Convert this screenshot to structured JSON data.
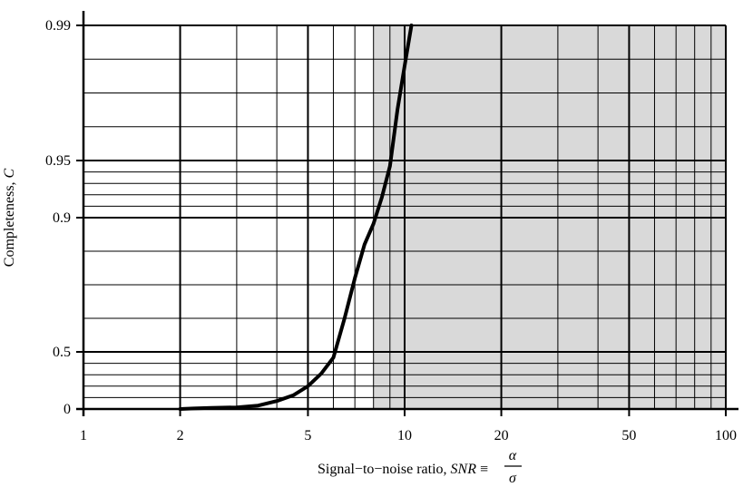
{
  "chart_data": {
    "type": "line",
    "title": "",
    "xlabel": {
      "prefix": "Signal−to−noise ratio, ",
      "symbol": "SNR",
      "equiv": " ≡ ",
      "numerator": "α",
      "denominator": "σ"
    },
    "ylabel": {
      "prefix": "Completeness, ",
      "symbol": "C"
    },
    "x_scale": "log",
    "xlim": [
      1,
      100
    ],
    "y_scale": "probability (nonlinear)",
    "ylim": [
      0,
      0.99
    ],
    "x_ticks": [
      1,
      2,
      5,
      10,
      20,
      50,
      100
    ],
    "x_tick_labels": [
      "1",
      "2",
      "5",
      "10",
      "20",
      "50",
      "100"
    ],
    "y_ticks": [
      0,
      0.5,
      0.9,
      0.95,
      0.99
    ],
    "y_tick_labels": [
      "0",
      "0.5",
      "0.9",
      "0.95",
      "0.99"
    ],
    "y_minor_gridlines": [
      0.1,
      0.2,
      0.3,
      0.4,
      0.6,
      0.7,
      0.8,
      0.91,
      0.92,
      0.93,
      0.94,
      0.96,
      0.97,
      0.98
    ],
    "grid": true,
    "shaded_region": {
      "x_from": 8,
      "x_to": 100,
      "color": "#d9d9d9"
    },
    "series": [
      {
        "color": "#000000",
        "x": [
          2,
          2.2,
          2.5,
          3,
          3.5,
          4,
          4.5,
          5,
          5.5,
          6,
          6.5,
          7,
          7.5,
          8,
          8.5,
          9,
          9.5,
          10,
          10.5
        ],
        "y": [
          0,
          0.005,
          0.01,
          0.014,
          0.03,
          0.07,
          0.12,
          0.2,
          0.31,
          0.45,
          0.6,
          0.72,
          0.82,
          0.882,
          0.918,
          0.945,
          0.965,
          0.978,
          0.99
        ]
      }
    ]
  }
}
